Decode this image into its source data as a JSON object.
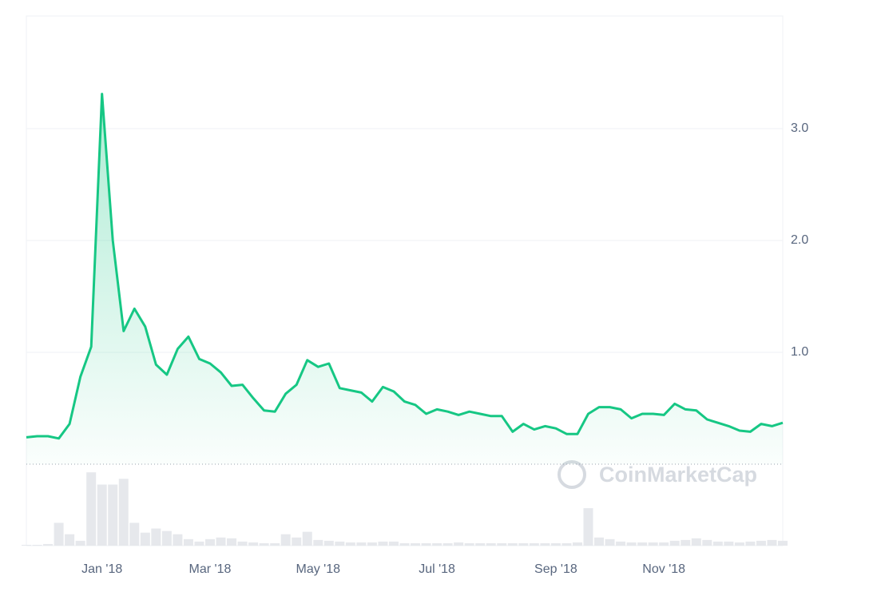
{
  "chart_data": {
    "type": "line",
    "watermark": "CoinMarketCap",
    "color": "#16c784",
    "categories": [
      null,
      null,
      null,
      null,
      null,
      null,
      null,
      "Jan '18",
      null,
      null,
      null,
      null,
      null,
      null,
      null,
      null,
      null,
      "Mar '18",
      null,
      null,
      null,
      null,
      null,
      null,
      null,
      null,
      null,
      "May '18",
      null,
      null,
      null,
      null,
      null,
      null,
      null,
      null,
      null,
      null,
      "Jul '18",
      null,
      null,
      null,
      null,
      null,
      null,
      null,
      null,
      null,
      null,
      "Sep '18",
      null,
      null,
      null,
      null,
      null,
      null,
      null,
      null,
      null,
      "Nov '18",
      null,
      null,
      null,
      null,
      null,
      null,
      null,
      null,
      null,
      null,
      null
    ],
    "values": [
      0.24,
      0.25,
      0.25,
      0.23,
      0.36,
      0.78,
      1.05,
      3.31,
      2.0,
      1.19,
      1.39,
      1.23,
      0.89,
      0.8,
      1.03,
      1.14,
      0.94,
      0.9,
      0.82,
      0.7,
      0.71,
      0.59,
      0.48,
      0.47,
      0.63,
      0.71,
      0.93,
      0.87,
      0.9,
      0.68,
      0.66,
      0.64,
      0.56,
      0.69,
      0.65,
      0.56,
      0.53,
      0.45,
      0.49,
      0.47,
      0.44,
      0.47,
      0.45,
      0.43,
      0.43,
      0.29,
      0.36,
      0.31,
      0.34,
      0.32,
      0.27,
      0.27,
      0.45,
      0.51,
      0.51,
      0.49,
      0.41,
      0.45,
      0.45,
      0.44,
      0.54,
      0.49,
      0.48,
      0.4,
      0.37,
      0.34,
      0.3,
      0.29,
      0.36,
      0.34,
      0.37
    ],
    "volume": {
      "color": "#e6e8ec",
      "values": [
        1,
        1,
        2,
        28,
        14,
        6,
        90,
        75,
        75,
        82,
        28,
        16,
        21,
        18,
        14,
        8,
        5,
        8,
        10,
        9,
        5,
        4,
        3,
        3,
        14,
        10,
        17,
        7,
        6,
        5,
        4,
        4,
        4,
        5,
        5,
        3,
        3,
        3,
        3,
        3,
        4,
        3,
        3,
        3,
        3,
        3,
        3,
        3,
        3,
        3,
        3,
        4,
        46,
        10,
        8,
        5,
        4,
        4,
        4,
        4,
        6,
        7,
        9,
        7,
        5,
        5,
        4,
        5,
        6,
        7,
        6
      ]
    },
    "y2lim": [
      0,
      100
    ],
    "ylim": [
      0,
      4.0
    ],
    "yticks": [
      {
        "value": 1,
        "label": "1.0"
      },
      {
        "value": 2,
        "label": "2.0"
      },
      {
        "value": 3,
        "label": "3.0"
      }
    ],
    "grid": true
  }
}
